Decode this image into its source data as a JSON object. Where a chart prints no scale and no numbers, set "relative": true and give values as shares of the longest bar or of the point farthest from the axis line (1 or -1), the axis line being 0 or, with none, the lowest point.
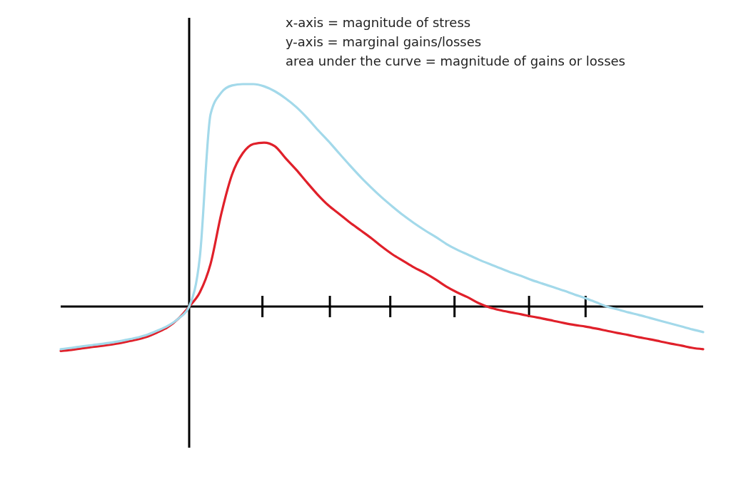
{
  "chart_data": {
    "type": "line",
    "relative": true,
    "categories": [
      null,
      null,
      null,
      null,
      null,
      null,
      null,
      null,
      null,
      null,
      null,
      null,
      null,
      null,
      null,
      null,
      null,
      null,
      null,
      null,
      null,
      null,
      null,
      null,
      null,
      null,
      null,
      null,
      null,
      null,
      null,
      null,
      null,
      null,
      null,
      null,
      null,
      null,
      null,
      null,
      null,
      null,
      null,
      null,
      null,
      null,
      null,
      null,
      null,
      null,
      null,
      null,
      null,
      null,
      null,
      null,
      null,
      null,
      null,
      null,
      null
    ],
    "series": [
      {
        "color": "#e0202a",
        "values": [
          -0.2,
          -0.195,
          -0.188,
          -0.182,
          -0.176,
          -0.169,
          -0.16,
          -0.15,
          -0.137,
          -0.117,
          -0.093,
          -0.054,
          0,
          0.064,
          0.192,
          0.417,
          0.593,
          0.689,
          0.731,
          0.737,
          0.721,
          0.667,
          0.615,
          0.558,
          0.503,
          0.455,
          0.417,
          0.378,
          0.343,
          0.308,
          0.269,
          0.234,
          0.205,
          0.176,
          0.151,
          0.122,
          0.09,
          0.064,
          0.042,
          0.016,
          -0.003,
          -0.016,
          -0.026,
          -0.035,
          -0.045,
          -0.054,
          -0.064,
          -0.074,
          -0.083,
          -0.09,
          -0.099,
          -0.109,
          -0.119,
          -0.128,
          -0.138,
          -0.147,
          -0.157,
          -0.167,
          -0.176,
          -0.186,
          -0.192
        ]
      },
      {
        "color": "#a3d9ea",
        "values": [
          -0.192,
          -0.186,
          -0.179,
          -0.173,
          -0.167,
          -0.16,
          -0.151,
          -0.141,
          -0.128,
          -0.109,
          -0.087,
          -0.054,
          0,
          0.224,
          0.865,
          0.962,
          0.994,
          1,
          1,
          0.99,
          0.968,
          0.936,
          0.897,
          0.849,
          0.795,
          0.744,
          0.689,
          0.635,
          0.583,
          0.535,
          0.49,
          0.449,
          0.41,
          0.375,
          0.343,
          0.314,
          0.282,
          0.256,
          0.234,
          0.212,
          0.192,
          0.173,
          0.154,
          0.138,
          0.119,
          0.103,
          0.087,
          0.071,
          0.054,
          0.038,
          0.019,
          0,
          -0.013,
          -0.026,
          -0.038,
          -0.051,
          -0.064,
          -0.077,
          -0.09,
          -0.103,
          -0.115
        ]
      }
    ],
    "annotations": [
      "x-axis = magnitude of stress",
      "y-axis = marginal gains/losses",
      "area under the curve = magnitude of gains or losses"
    ]
  }
}
